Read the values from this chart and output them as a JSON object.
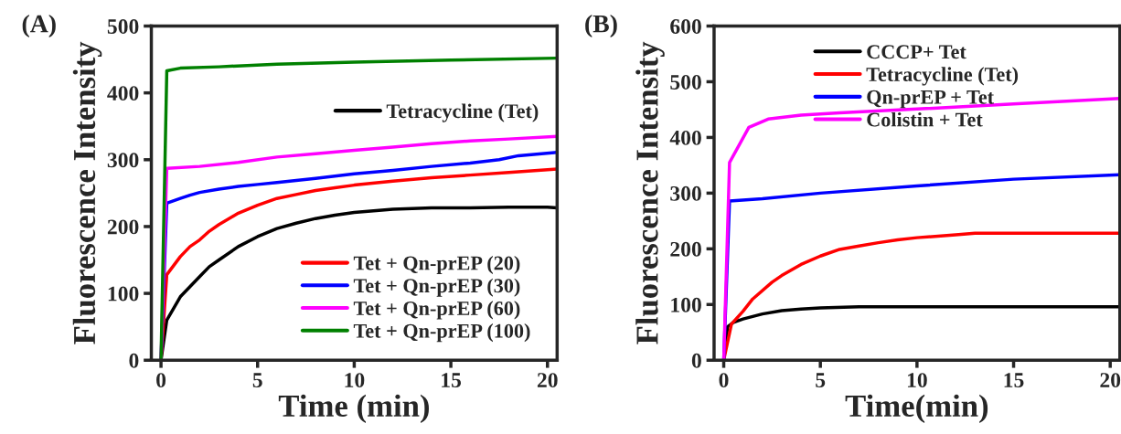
{
  "chart_data": [
    {
      "type": "line",
      "annotations": [
        "(A)"
      ],
      "xlabel": "Time (min)",
      "ylabel": "Fluorescence Intensity",
      "xlim": [
        -0.5,
        20.5
      ],
      "ylim": [
        0,
        500
      ],
      "xticks": [
        0,
        5,
        10,
        15,
        20
      ],
      "yticks": [
        0,
        100,
        200,
        300,
        400,
        500
      ],
      "legend": "right",
      "grid": false,
      "marker": "none",
      "line_style": "solid",
      "series": [
        {
          "name": "Tetracycline (Tet)",
          "color": "#000000",
          "x": [
            0,
            0.3,
            1,
            1.5,
            2,
            2.5,
            3,
            4,
            5,
            6,
            7,
            8,
            9,
            10,
            12,
            14,
            16,
            18,
            20,
            20.5
          ],
          "values": [
            0,
            60,
            95,
            110,
            125,
            140,
            150,
            170,
            185,
            197,
            205,
            212,
            217,
            221,
            226,
            228,
            228,
            229,
            229,
            228
          ]
        },
        {
          "name": "Tet + Qn-prEP (20)",
          "color": "#ff0000",
          "x": [
            0,
            0.3,
            1,
            1.5,
            2,
            2.5,
            3,
            4,
            5,
            6,
            7,
            8,
            9,
            10,
            12,
            14,
            16,
            18,
            20,
            20.5
          ],
          "values": [
            0,
            128,
            155,
            170,
            180,
            193,
            203,
            220,
            232,
            242,
            248,
            254,
            258,
            262,
            268,
            273,
            277,
            281,
            285,
            286
          ]
        },
        {
          "name": "Tet + Qn-prEP (30)",
          "color": "#0000ff",
          "x": [
            0,
            0.3,
            1,
            1.5,
            2,
            3,
            4,
            5,
            6,
            8,
            10,
            12,
            14,
            16,
            17.5,
            18.5,
            20.5
          ],
          "values": [
            0,
            235,
            242,
            247,
            251,
            256,
            260,
            263,
            266,
            272,
            279,
            284,
            290,
            295,
            300,
            306,
            311
          ]
        },
        {
          "name": "Tet + Qn-prEP (60)",
          "color": "#ff00ff",
          "x": [
            0,
            0.3,
            2,
            4,
            6,
            8,
            10,
            12,
            14,
            16,
            18,
            20.5
          ],
          "values": [
            0,
            287,
            290,
            296,
            304,
            309,
            314,
            319,
            324,
            328,
            331,
            335
          ]
        },
        {
          "name": "Tet + Qn-prEP (100)",
          "color": "#008000",
          "x": [
            0,
            0.3,
            1,
            3,
            6,
            10,
            15,
            20.5
          ],
          "values": [
            0,
            433,
            437,
            439,
            443,
            446,
            449,
            452
          ]
        }
      ]
    },
    {
      "type": "line",
      "annotations": [
        "(B)"
      ],
      "xlabel": "Time(min)",
      "ylabel": "Fluorescence Intensity",
      "xlim": [
        -0.5,
        20.5
      ],
      "ylim": [
        0,
        600
      ],
      "xticks": [
        0,
        5,
        10,
        15,
        20
      ],
      "yticks": [
        0,
        100,
        200,
        300,
        400,
        500,
        600
      ],
      "legend": "top",
      "grid": false,
      "marker": "none",
      "line_style": "solid",
      "series": [
        {
          "name": "CCCP+ Tet",
          "color": "#000000",
          "x": [
            0,
            0.2,
            0.5,
            1,
            2,
            3,
            4,
            5,
            7,
            10,
            15,
            20.5
          ],
          "values": [
            0,
            60,
            68,
            74,
            83,
            89,
            92,
            94,
            96,
            96,
            96,
            96
          ]
        },
        {
          "name": "Tetracycline (Tet)",
          "color": "#ff0000",
          "x": [
            0,
            0.4,
            1,
            1.5,
            2.5,
            3,
            4,
            5,
            6,
            7,
            8,
            9,
            10,
            12,
            13,
            20.5
          ],
          "values": [
            0,
            65,
            88,
            110,
            140,
            152,
            172,
            187,
            199,
            205,
            211,
            216,
            220,
            225,
            228,
            228
          ]
        },
        {
          "name": "Qn-prEP + Tet",
          "color": "#0000ff",
          "x": [
            0,
            0.3,
            2,
            5,
            10,
            15,
            20.5
          ],
          "values": [
            0,
            286,
            290,
            300,
            313,
            325,
            333
          ]
        },
        {
          "name": "Colistin + Tet",
          "color": "#ff00ff",
          "x": [
            0,
            0.3,
            1.3,
            2.3,
            4,
            6,
            10,
            15,
            20.5
          ],
          "values": [
            0,
            355,
            418,
            433,
            440,
            444,
            451,
            460,
            470
          ]
        }
      ]
    }
  ]
}
